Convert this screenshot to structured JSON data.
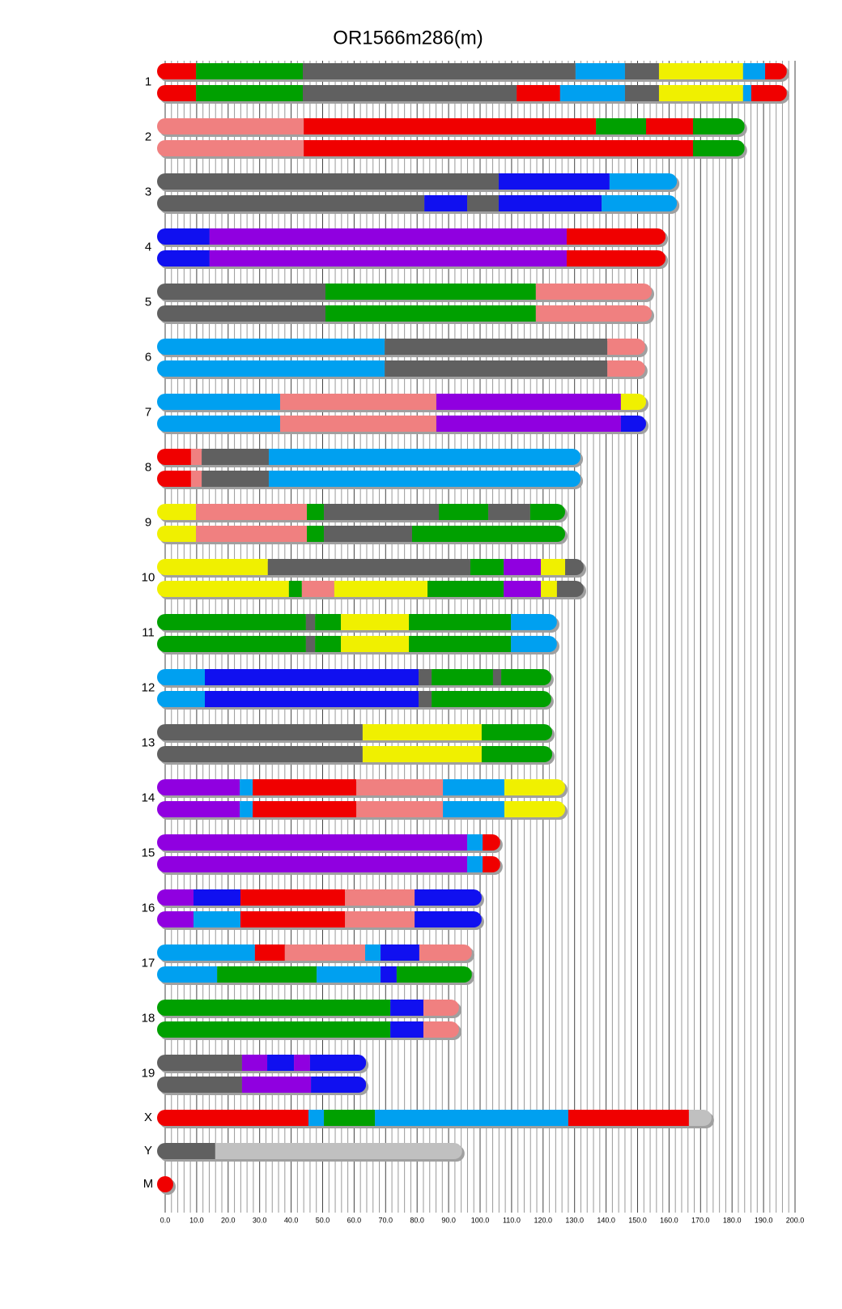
{
  "chart_data": {
    "type": "haplotype-mosaic",
    "title": "OR1566m286(m)",
    "xlim": [
      0,
      200
    ],
    "xticks": [
      {
        "value": 0,
        "label": "0.0"
      },
      {
        "value": 10,
        "label": "10.0"
      },
      {
        "value": 20,
        "label": "20.0"
      },
      {
        "value": 30,
        "label": "30.0"
      },
      {
        "value": 40,
        "label": "40.0"
      },
      {
        "value": 50,
        "label": "50.0"
      },
      {
        "value": 60,
        "label": "60.0"
      },
      {
        "value": 70,
        "label": "70.0"
      },
      {
        "value": 80,
        "label": "80.0"
      },
      {
        "value": 90,
        "label": "90.0"
      },
      {
        "value": 100,
        "label": "100.0"
      },
      {
        "value": 110,
        "label": "110.0"
      },
      {
        "value": 120,
        "label": "120.0"
      },
      {
        "value": 130,
        "label": "130.0"
      },
      {
        "value": 140,
        "label": "140.0"
      },
      {
        "value": 150,
        "label": "150.0"
      },
      {
        "value": 160,
        "label": "160.0"
      },
      {
        "value": 170,
        "label": "170.0"
      },
      {
        "value": 180,
        "label": "180.0"
      },
      {
        "value": 190,
        "label": "190.0"
      },
      {
        "value": 200,
        "label": "200.0"
      }
    ],
    "xgrid": [
      0,
      2,
      4,
      6,
      8,
      10,
      12,
      14,
      16,
      18,
      20,
      22,
      24,
      26,
      28,
      30,
      32,
      34,
      36,
      38,
      40,
      42,
      44,
      46,
      48,
      50,
      52,
      54,
      56,
      58,
      60,
      62,
      64,
      66,
      68,
      70,
      72,
      74,
      76,
      78,
      80,
      82,
      84,
      86,
      88,
      90,
      92,
      94,
      96,
      98,
      100,
      102,
      104,
      106,
      108,
      110,
      112,
      114,
      116,
      118,
      120,
      122,
      124,
      126,
      128,
      130,
      132,
      134,
      136,
      138,
      140,
      142,
      144,
      146,
      148,
      150,
      152,
      154,
      156,
      158,
      160,
      162,
      164,
      166,
      168,
      170,
      172,
      174,
      176,
      178,
      180,
      182,
      184,
      186,
      188,
      190,
      192,
      194,
      196,
      198,
      200
    ],
    "chromosomes": [
      {
        "name": "1",
        "haplotypes": [
          {
            "ends": [
              9.8,
              43.7,
              130.3,
              146,
              156.8,
              183.5,
              190.5,
              197.4
            ],
            "colors": [
              "#f00000",
              "#00a000",
              "#606060",
              "#00a0f0",
              "#606060",
              "#f0f000",
              "#00a0f0",
              "#f00000"
            ]
          },
          {
            "ends": [
              9.8,
              43.7,
              111.6,
              125.4,
              146,
              156.8,
              183.5,
              186.1,
              197.4
            ],
            "colors": [
              "#f00000",
              "#00a000",
              "#606060",
              "#f00000",
              "#00a0f0",
              "#606060",
              "#f0f000",
              "#00a0f0",
              "#f00000"
            ]
          }
        ]
      },
      {
        "name": "2",
        "haplotypes": [
          {
            "ends": [
              44,
              136.8,
              152.7,
              167.6,
              184
            ],
            "colors": [
              "#f08080",
              "#f00000",
              "#00a000",
              "#f00000",
              "#00a000"
            ]
          },
          {
            "ends": [
              44,
              167.6,
              184
            ],
            "colors": [
              "#f08080",
              "#f00000",
              "#00a000"
            ]
          }
        ]
      },
      {
        "name": "3",
        "haplotypes": [
          {
            "ends": [
              105.9,
              141.1,
              162.5
            ],
            "colors": [
              "#606060",
              "#1010f0",
              "#00a0f0"
            ]
          },
          {
            "ends": [
              82.3,
              95.9,
              105.9,
              138.6,
              162.5
            ],
            "colors": [
              "#606060",
              "#1010f0",
              "#606060",
              "#1010f0",
              "#00a0f0"
            ]
          }
        ]
      },
      {
        "name": "4",
        "haplotypes": [
          {
            "ends": [
              14.1,
              127.5,
              158.9
            ],
            "colors": [
              "#1010f0",
              "#9000e0",
              "#f00000"
            ]
          },
          {
            "ends": [
              14.1,
              127.5,
              158.9
            ],
            "colors": [
              "#1010f0",
              "#9000e0",
              "#f00000"
            ]
          }
        ]
      },
      {
        "name": "5",
        "haplotypes": [
          {
            "ends": [
              50.9,
              117.7,
              154.5
            ],
            "colors": [
              "#606060",
              "#00a000",
              "#f08080"
            ]
          },
          {
            "ends": [
              50.9,
              117.7,
              154.5
            ],
            "colors": [
              "#606060",
              "#00a000",
              "#f08080"
            ]
          }
        ]
      },
      {
        "name": "6",
        "haplotypes": [
          {
            "ends": [
              69.7,
              140.4,
              152.4
            ],
            "colors": [
              "#00a0f0",
              "#606060",
              "#f08080"
            ]
          },
          {
            "ends": [
              69.7,
              140.4,
              152.4
            ],
            "colors": [
              "#00a0f0",
              "#606060",
              "#f08080"
            ]
          }
        ]
      },
      {
        "name": "7",
        "haplotypes": [
          {
            "ends": [
              36.5,
              86.1,
              144.7,
              152.7
            ],
            "colors": [
              "#00a0f0",
              "#f08080",
              "#9000e0",
              "#f0f000"
            ]
          },
          {
            "ends": [
              36.5,
              86.1,
              144.7,
              152.7
            ],
            "colors": [
              "#00a0f0",
              "#f08080",
              "#9000e0",
              "#1010f0"
            ]
          }
        ]
      },
      {
        "name": "8",
        "haplotypes": [
          {
            "ends": [
              8.2,
              11.6,
              32.9,
              131.9
            ],
            "colors": [
              "#f00000",
              "#f08080",
              "#606060",
              "#00a0f0"
            ]
          },
          {
            "ends": [
              8.2,
              11.6,
              32.9,
              131.9
            ],
            "colors": [
              "#f00000",
              "#f08080",
              "#606060",
              "#00a0f0"
            ]
          }
        ]
      },
      {
        "name": "9",
        "haplotypes": [
          {
            "ends": [
              9.8,
              45,
              50.4,
              86.9,
              102.6,
              115.9,
              127
            ],
            "colors": [
              "#f0f000",
              "#f08080",
              "#00a000",
              "#606060",
              "#00a000",
              "#606060",
              "#00a000"
            ]
          },
          {
            "ends": [
              9.8,
              45,
              50.4,
              78.4,
              127
            ],
            "colors": [
              "#f0f000",
              "#f08080",
              "#00a000",
              "#606060",
              "#00a000"
            ]
          }
        ]
      },
      {
        "name": "10",
        "haplotypes": [
          {
            "ends": [
              32.6,
              96.9,
              107.5,
              119.3,
              127,
              132.9
            ],
            "colors": [
              "#f0f000",
              "#606060",
              "#00a000",
              "#9000e0",
              "#f0f000",
              "#606060"
            ]
          },
          {
            "ends": [
              39.3,
              43.4,
              53.7,
              83.3,
              107.5,
              119.3,
              124.4,
              132.9
            ],
            "colors": [
              "#f0f000",
              "#00a000",
              "#f08080",
              "#f0f000",
              "#00a000",
              "#9000e0",
              "#f0f000",
              "#606060"
            ]
          }
        ]
      },
      {
        "name": "11",
        "haplotypes": [
          {
            "ends": [
              44.7,
              47.6,
              55.8,
              77.4,
              109.8,
              124.4
            ],
            "colors": [
              "#00a000",
              "#606060",
              "#00a000",
              "#f0f000",
              "#00a000",
              "#00a0f0"
            ]
          },
          {
            "ends": [
              44.7,
              47.6,
              55.8,
              77.4,
              109.8,
              124.4
            ],
            "colors": [
              "#00a000",
              "#606060",
              "#00a000",
              "#f0f000",
              "#00a000",
              "#00a0f0"
            ]
          }
        ]
      },
      {
        "name": "12",
        "haplotypes": [
          {
            "ends": [
              12.6,
              80.5,
              84.6,
              104.1,
              106.7,
              122.6
            ],
            "colors": [
              "#00a0f0",
              "#1010f0",
              "#606060",
              "#00a000",
              "#606060",
              "#00a000"
            ]
          },
          {
            "ends": [
              12.6,
              80.5,
              84.6,
              122.6
            ],
            "colors": [
              "#00a0f0",
              "#1010f0",
              "#606060",
              "#00a000"
            ]
          }
        ]
      },
      {
        "name": "13",
        "haplotypes": [
          {
            "ends": [
              62.7,
              100.5,
              122.9
            ],
            "colors": [
              "#606060",
              "#f0f000",
              "#00a000"
            ]
          },
          {
            "ends": [
              62.7,
              100.5,
              122.9
            ],
            "colors": [
              "#606060",
              "#f0f000",
              "#00a000"
            ]
          }
        ]
      },
      {
        "name": "14",
        "haplotypes": [
          {
            "ends": [
              23.7,
              27.8,
              60.7,
              88.2,
              107.7,
              127
            ],
            "colors": [
              "#9000e0",
              "#00a0f0",
              "#f00000",
              "#f08080",
              "#00a0f0",
              "#f0f000"
            ]
          },
          {
            "ends": [
              23.7,
              27.8,
              60.7,
              88.2,
              107.7,
              127
            ],
            "colors": [
              "#9000e0",
              "#00a0f0",
              "#f00000",
              "#f08080",
              "#00a0f0",
              "#f0f000"
            ]
          }
        ]
      },
      {
        "name": "15",
        "haplotypes": [
          {
            "ends": [
              95.9,
              100.8,
              106.4
            ],
            "colors": [
              "#9000e0",
              "#00a0f0",
              "#f00000"
            ]
          },
          {
            "ends": [
              95.9,
              100.8,
              106.4
            ],
            "colors": [
              "#9000e0",
              "#00a0f0",
              "#f00000"
            ]
          }
        ]
      },
      {
        "name": "16",
        "haplotypes": [
          {
            "ends": [
              9,
              23.9,
              57.1,
              79.2,
              100.5
            ],
            "colors": [
              "#9000e0",
              "#1010f0",
              "#f00000",
              "#f08080",
              "#1010f0"
            ]
          },
          {
            "ends": [
              9,
              23.9,
              57.1,
              79.2,
              100.5
            ],
            "colors": [
              "#9000e0",
              "#00a0f0",
              "#f00000",
              "#f08080",
              "#1010f0"
            ]
          }
        ]
      },
      {
        "name": "17",
        "haplotypes": [
          {
            "ends": [
              28.5,
              38,
              63.5,
              68.4,
              80.7,
              97.4
            ],
            "colors": [
              "#00a0f0",
              "#f00000",
              "#f08080",
              "#00a0f0",
              "#1010f0",
              "#f08080"
            ]
          },
          {
            "ends": [
              16.5,
              48.1,
              68.4,
              73.5,
              97.4
            ],
            "colors": [
              "#00a0f0",
              "#00a000",
              "#00a0f0",
              "#1010f0",
              "#00a000"
            ]
          }
        ]
      },
      {
        "name": "18",
        "haplotypes": [
          {
            "ends": [
              71.5,
              82,
              93.3
            ],
            "colors": [
              "#00a000",
              "#1010f0",
              "#f08080"
            ]
          },
          {
            "ends": [
              71.5,
              82,
              93.3
            ],
            "colors": [
              "#00a000",
              "#1010f0",
              "#f08080"
            ]
          }
        ]
      },
      {
        "name": "19",
        "haplotypes": [
          {
            "ends": [
              24.4,
              32.4,
              40.9,
              46,
              63.8
            ],
            "colors": [
              "#606060",
              "#9000e0",
              "#1010f0",
              "#9000e0",
              "#1010f0"
            ]
          },
          {
            "ends": [
              24.4,
              46.3,
              63.8
            ],
            "colors": [
              "#606060",
              "#9000e0",
              "#1010f0"
            ]
          }
        ]
      },
      {
        "name": "X",
        "haplotypes": [
          {
            "ends": [
              45.5,
              50.4,
              66.6,
              128,
              166.3,
              173.5
            ],
            "colors": [
              "#f00000",
              "#00a0f0",
              "#00a000",
              "#00a0f0",
              "#f00000",
              "#c0c0c0"
            ]
          }
        ]
      },
      {
        "name": "Y",
        "haplotypes": [
          {
            "ends": [
              15.9,
              94.3
            ],
            "colors": [
              "#606060",
              "#c0c0c0"
            ]
          }
        ]
      },
      {
        "name": "M",
        "haplotypes": [
          {
            "ends": [
              0.02
            ],
            "colors": [
              "#f00000"
            ]
          }
        ]
      }
    ]
  }
}
